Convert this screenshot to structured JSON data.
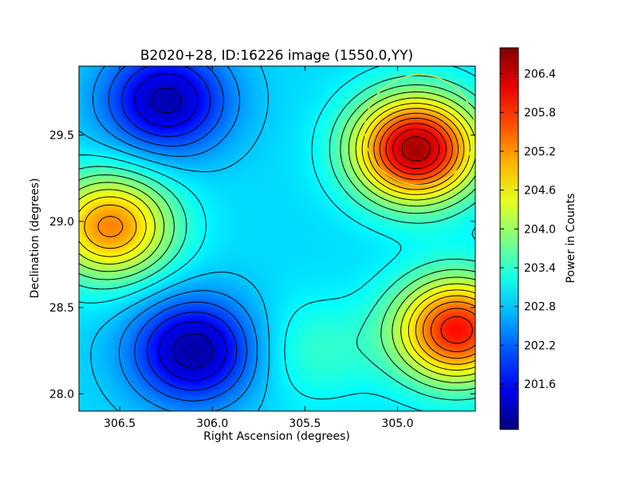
{
  "chart_data": {
    "type": "heatmap",
    "title": "B2020+28, ID:16226 image (1550.0,YY)",
    "xlabel": "Right Ascension (degrees)",
    "ylabel": "Declination (degrees)",
    "xlim": [
      306.72,
      304.58
    ],
    "ylim": [
      27.9,
      29.9
    ],
    "x_inverted": true,
    "xticks": [
      306.5,
      306.0,
      305.5,
      305.0
    ],
    "xtick_labels": [
      "306.5",
      "306.0",
      "305.5",
      "305.0"
    ],
    "yticks": [
      28.0,
      28.5,
      29.0,
      29.5
    ],
    "ytick_labels": [
      "28.0",
      "28.5",
      "29.0",
      "29.5"
    ],
    "colormap": "jet",
    "colorbar": {
      "label": "Power in Counts",
      "range": [
        200.9,
        206.8
      ],
      "ticks": [
        201.6,
        202.2,
        202.8,
        203.4,
        204.0,
        204.6,
        205.2,
        205.8,
        206.4
      ],
      "tick_labels": [
        "201.6",
        "202.2",
        "202.8",
        "203.4",
        "204.0",
        "204.6",
        "205.2",
        "205.8",
        "206.4"
      ]
    },
    "contours": true,
    "contour_color": "#000000",
    "features": [
      {
        "kind": "maximum",
        "ra": 304.9,
        "dec": 29.42,
        "value": 206.6
      },
      {
        "kind": "maximum",
        "ra": 304.68,
        "dec": 28.37,
        "value": 206.0
      },
      {
        "kind": "maximum",
        "ra": 306.55,
        "dec": 28.97,
        "value": 205.3
      },
      {
        "kind": "maximum",
        "ra": 305.45,
        "dec": 28.25,
        "value": 203.4
      },
      {
        "kind": "minimum",
        "ra": 306.1,
        "dec": 28.25,
        "value": 201.1
      },
      {
        "kind": "minimum",
        "ra": 306.25,
        "dec": 29.7,
        "value": 201.2
      }
    ],
    "source_circle": {
      "ra": 304.88,
      "dec": 29.53,
      "radius_deg": 0.32,
      "color": "#e8e040"
    }
  }
}
